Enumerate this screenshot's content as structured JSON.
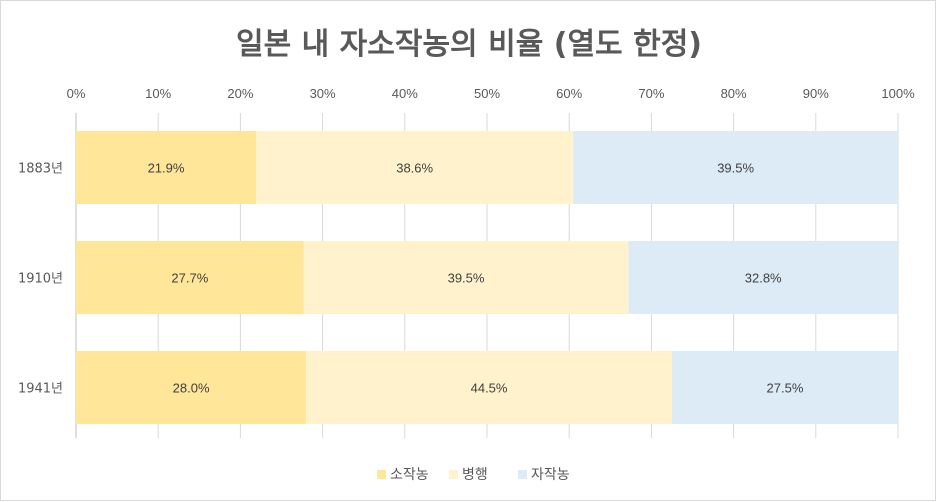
{
  "chart_data": {
    "type": "bar",
    "orientation": "horizontal",
    "stacked": "percent",
    "title": "일본 내 자소작농의 비율 (열도 한정)",
    "categories": [
      "1883년",
      "1910년",
      "1941년"
    ],
    "series": [
      {
        "name": "소작농",
        "values": [
          21.9,
          27.7,
          28.0
        ],
        "labels": [
          "21.9%",
          "27.7%",
          "28.0%"
        ],
        "color": "#FFE699"
      },
      {
        "name": "병행",
        "values": [
          38.6,
          39.5,
          44.5
        ],
        "labels": [
          "38.6%",
          "39.5%",
          "44.5%"
        ],
        "color": "#FFF2CC"
      },
      {
        "name": "자작농",
        "values": [
          39.5,
          32.8,
          27.5
        ],
        "labels": [
          "39.5%",
          "32.8%",
          "27.5%"
        ],
        "color": "#DDEBF7"
      }
    ],
    "xlim": [
      0,
      100
    ],
    "x_ticks": [
      "0%",
      "10%",
      "20%",
      "30%",
      "40%",
      "50%",
      "60%",
      "70%",
      "80%",
      "90%",
      "100%"
    ],
    "x_axis_position": "top",
    "grid": true,
    "legend_position": "bottom"
  }
}
